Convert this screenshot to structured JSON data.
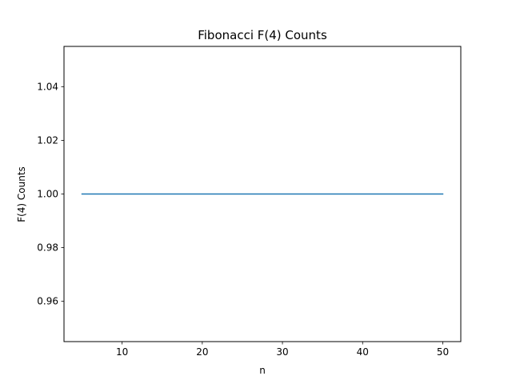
{
  "chart_data": {
    "type": "line",
    "title": "Fibonacci F(4) Counts",
    "xlabel": "n",
    "ylabel": "F(4) Counts",
    "xlim": [
      2.75,
      52.25
    ],
    "ylim": [
      0.945,
      1.055
    ],
    "xticks": [
      10,
      20,
      30,
      40,
      50
    ],
    "xtick_labels": [
      "10",
      "20",
      "30",
      "40",
      "50"
    ],
    "yticks": [
      0.96,
      0.98,
      1.0,
      1.02,
      1.04
    ],
    "ytick_labels": [
      "0.96",
      "0.98",
      "1.00",
      "1.02",
      "1.04"
    ],
    "grid": false,
    "series": [
      {
        "x": [
          5,
          10,
          15,
          20,
          25,
          30,
          35,
          40,
          45,
          50
        ],
        "y": [
          1,
          1,
          1,
          1,
          1,
          1,
          1,
          1,
          1,
          1
        ],
        "color": "#1f77b4"
      }
    ]
  }
}
